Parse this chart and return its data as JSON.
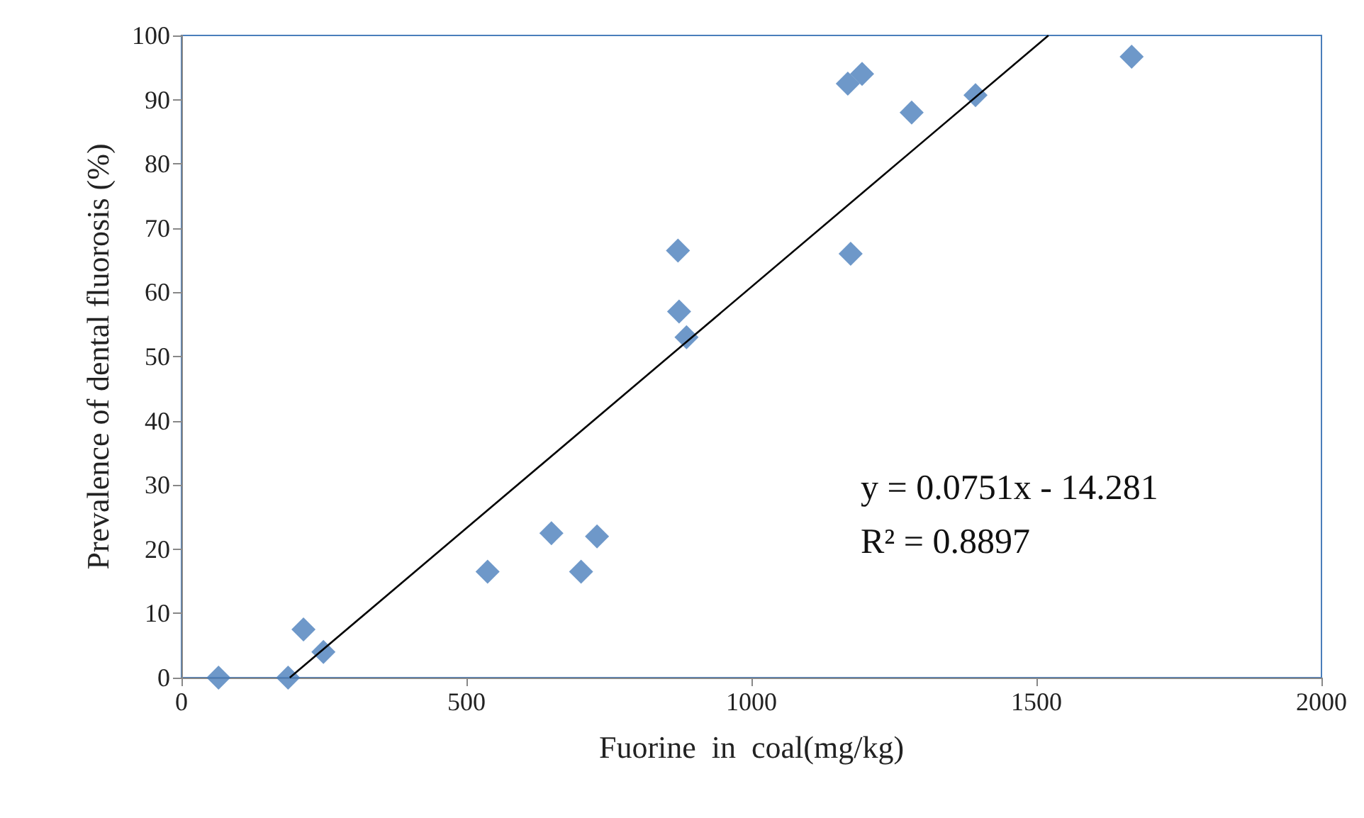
{
  "chart_data": {
    "type": "scatter",
    "xlabel": "Fuorine  in  coal(mg/kg)",
    "ylabel": "Prevalence of dental fluorosis (%)",
    "series": [
      {
        "color": "#4a7ebb",
        "marker": "diamond",
        "x": [
          65,
          187,
          214,
          249,
          537,
          649,
          701,
          729,
          871,
          873,
          886,
          1169,
          1194,
          1174,
          1281,
          1393,
          1667
        ],
        "values": [
          0,
          0,
          7.5,
          4,
          16.5,
          22.5,
          16.5,
          22,
          66.5,
          57,
          53,
          92.5,
          94,
          66,
          88,
          90.7,
          96.7
        ]
      },
      {
        "type": "line",
        "color": "#000000",
        "marker": "none",
        "x": [
          190,
          1521
        ],
        "values": [
          0,
          100
        ]
      }
    ],
    "annotations": [
      "y = 0.0751x - 14.281",
      "R² = 0.8897"
    ],
    "xlim": [
      0,
      2000
    ],
    "xticks": [
      0,
      500,
      1000,
      1500,
      2000
    ],
    "ylim": [
      0,
      100
    ],
    "yticks": [
      0,
      10,
      20,
      30,
      40,
      50,
      60,
      70,
      80,
      90,
      100
    ],
    "grid": false
  }
}
